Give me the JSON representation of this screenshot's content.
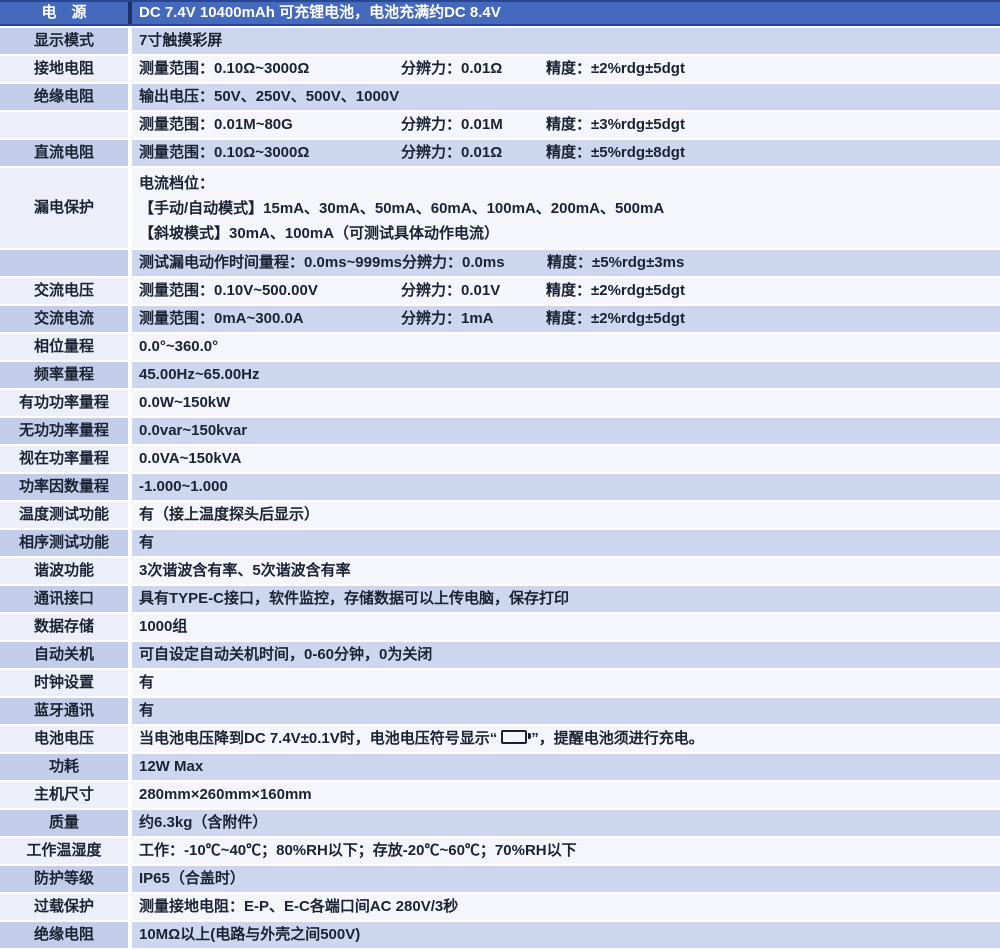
{
  "colors": {
    "header_bg": "#4569bc",
    "header_divider": "#1d3168",
    "header_edge": "#2a4690",
    "row_blue_label": "#c2cee9",
    "row_blue_value": "#ccd7ef",
    "row_light_label": "#eceff8",
    "row_light_value": "#f4f6fc",
    "text": "#1b2233",
    "header_text": "#ffffff"
  },
  "table": {
    "header": {
      "label": "电　源",
      "value": "DC 7.4V 10400mAh 可充锂电池，电池充满约DC 8.4V"
    },
    "rows": [
      {
        "label": "显示模式",
        "segments": [
          "7寸触摸彩屏"
        ]
      },
      {
        "label": "接地电阻",
        "segments": [
          "测量范围：0.10Ω~3000Ω",
          "分辨力：0.01Ω",
          "精度：±2%rdg±5dgt"
        ]
      },
      {
        "label": "绝缘电阻",
        "segments": [
          "输出电压：50V、250V、500V、1000V"
        ]
      },
      {
        "label": "",
        "segments": [
          "测量范围：0.01M~80G",
          "分辨力：0.01M",
          "精度：±3%rdg±5dgt"
        ]
      },
      {
        "label": "直流电阻",
        "segments": [
          "测量范围：0.10Ω~3000Ω",
          "分辨力：0.01Ω",
          "精度：±5%rdg±8dgt"
        ]
      },
      {
        "label": "漏电保护",
        "lines": [
          "电流档位：",
          "【手动/自动模式】15mA、30mA、50mA、60mA、100mA、200mA、500mA",
          "【斜坡模式】30mA、100mA（可测试具体动作电流）"
        ]
      },
      {
        "label": "",
        "segments": [
          "测试漏电动作时间量程：0.0ms~999ms",
          "分辨力：0.0ms",
          "精度：±5%rdg±3ms"
        ]
      },
      {
        "label": "交流电压",
        "segments": [
          "测量范围：0.10V~500.00V",
          "分辨力：0.01V",
          "精度：±2%rdg±5dgt"
        ]
      },
      {
        "label": "交流电流",
        "segments": [
          "测量范围：0mA~300.0A",
          "分辨力：1mA",
          "精度：±2%rdg±5dgt"
        ]
      },
      {
        "label": "相位量程",
        "segments": [
          "0.0°~360.0°"
        ]
      },
      {
        "label": "频率量程",
        "segments": [
          "45.00Hz~65.00Hz"
        ]
      },
      {
        "label": "有功功率量程",
        "segments": [
          "0.0W~150kW"
        ]
      },
      {
        "label": "无功功率量程",
        "segments": [
          "0.0var~150kvar"
        ]
      },
      {
        "label": "视在功率量程",
        "segments": [
          "0.0VA~150kVA"
        ]
      },
      {
        "label": "功率因数量程",
        "segments": [
          "-1.000~1.000"
        ]
      },
      {
        "label": "温度测试功能",
        "segments": [
          "有（接上温度探头后显示）"
        ]
      },
      {
        "label": "相序测试功能",
        "segments": [
          "有"
        ]
      },
      {
        "label": "谐波功能",
        "segments": [
          "3次谐波含有率、5次谐波含有率"
        ]
      },
      {
        "label": "通讯接口",
        "segments": [
          "具有TYPE-C接口，软件监控，存储数据可以上传电脑，保存打印"
        ]
      },
      {
        "label": "数据存储",
        "segments": [
          "1000组"
        ]
      },
      {
        "label": "自动关机",
        "segments": [
          "可自设定自动关机时间，0-60分钟，0为关闭"
        ]
      },
      {
        "label": "时钟设置",
        "segments": [
          "有"
        ]
      },
      {
        "label": "蓝牙通讯",
        "segments": [
          "有"
        ]
      },
      {
        "label": "电池电压",
        "battery": {
          "before": "当电池电压降到DC 7.4V±0.1V时，电池电压符号显示“",
          "icon": "battery-empty-icon",
          "after": "”，提醒电池须进行充电。"
        }
      },
      {
        "label": "功耗",
        "segments": [
          "12W Max"
        ]
      },
      {
        "label": "主机尺寸",
        "segments": [
          "280mm×260mm×160mm"
        ]
      },
      {
        "label": "质量",
        "segments": [
          "约6.3kg（含附件）"
        ]
      },
      {
        "label": "工作温湿度",
        "segments": [
          "工作：-10℃~40℃；80%RH以下；存放-20℃~60℃；70%RH以下"
        ]
      },
      {
        "label": "防护等级",
        "segments": [
          "IP65（合盖时）"
        ]
      },
      {
        "label": "过载保护",
        "segments": [
          "测量接地电阻：E-P、E-C各端口间AC 280V/3秒"
        ]
      },
      {
        "label": "绝缘电阻",
        "segments": [
          "10MΩ以上(电路与外壳之间500V)"
        ]
      }
    ]
  }
}
